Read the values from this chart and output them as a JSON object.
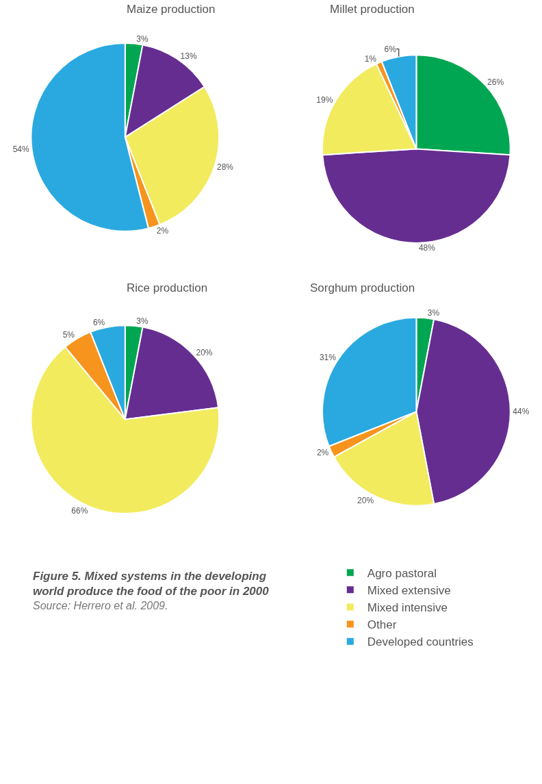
{
  "chart_data": [
    {
      "type": "pie",
      "title": "Maize production",
      "categories": [
        "Agro pastoral",
        "Mixed extensive",
        "Mixed intensive",
        "Other",
        "Developed countries"
      ],
      "values": [
        3,
        13,
        28,
        2,
        54
      ],
      "value_labels": [
        "3%",
        "13%",
        "28%",
        "2%",
        "54%"
      ],
      "colors": [
        "#00a651",
        "#662d91",
        "#f2eb5e",
        "#f7941d",
        "#29a9e0"
      ],
      "legend": "bottom right"
    },
    {
      "type": "pie",
      "title": "Millet production",
      "categories": [
        null,
        null,
        null,
        null,
        null
      ],
      "values": [
        26,
        48,
        19,
        1,
        6
      ],
      "value_labels": [
        "26%",
        "48%",
        "19%",
        "1%",
        "6%"
      ],
      "colors": [
        "#00a651",
        "#662d91",
        "#f2eb5e",
        "#f7941d",
        "#29a9e0"
      ]
    },
    {
      "type": "pie",
      "title": "Rice production",
      "categories": [
        null,
        null,
        null,
        null,
        null
      ],
      "values": [
        3,
        20,
        66,
        5,
        6
      ],
      "value_labels": [
        "3%",
        "20%",
        "66%",
        "5%",
        "6%"
      ],
      "colors": [
        "#00a651",
        "#662d91",
        "#f2eb5e",
        "#f7941d",
        "#29a9e0"
      ]
    },
    {
      "type": "pie",
      "title": "Sorghum production",
      "categories": [
        null,
        null,
        null,
        null,
        null
      ],
      "values": [
        3,
        44,
        20,
        2,
        31
      ],
      "value_labels": [
        "3%",
        "44%",
        "20%",
        "2%",
        "31%"
      ],
      "colors": [
        "#00a651",
        "#662d91",
        "#f2eb5e",
        "#f7941d",
        "#29a9e0"
      ],
      "annotations": [
        "Figure 5. Mixed systems in the developing world produce the food of the poor in 2000",
        "Source: Herrero et al. 2009."
      ]
    }
  ]
}
